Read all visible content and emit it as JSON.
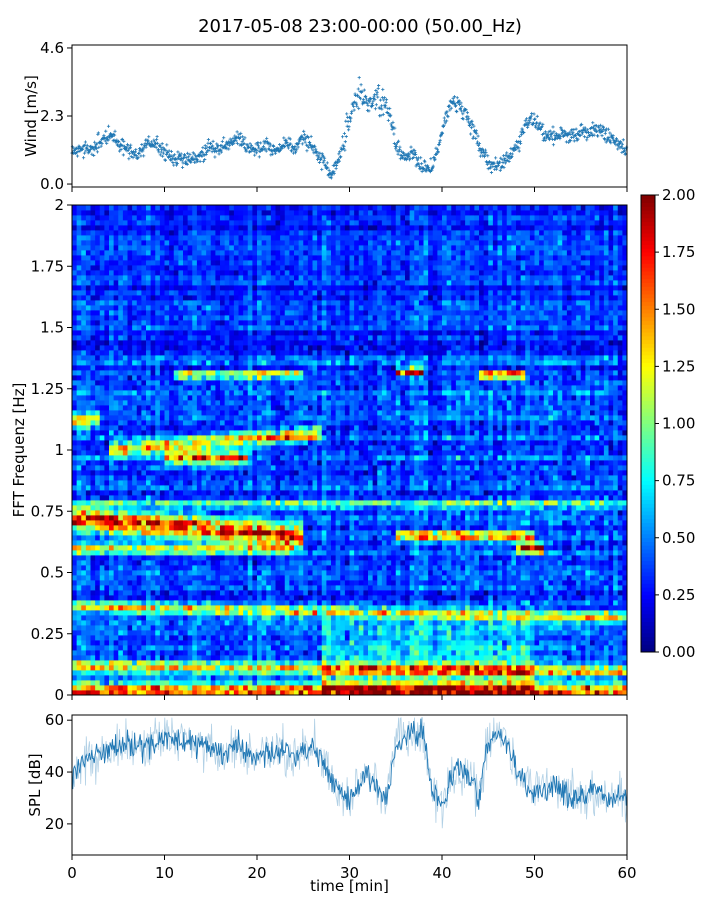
{
  "figure_title": "2017-05-08 23:00-00:00 (50.00_Hz)",
  "chart_data": [
    {
      "name": "wind",
      "type": "scatter",
      "ylabel": "Wind [m/s]",
      "xlim": [
        0,
        60
      ],
      "ylim": [
        -0.1,
        4.7
      ],
      "yticks": [
        0.0,
        2.3,
        4.6
      ],
      "ytick_labels": [
        "0.0",
        "2.3",
        "4.6"
      ],
      "color": "#1f77b4",
      "marker": "+",
      "trend": {
        "x": [
          0,
          1,
          2,
          3,
          4,
          5,
          6,
          7,
          8,
          9,
          10,
          11,
          12,
          13,
          14,
          15,
          16,
          17,
          18,
          19,
          20,
          21,
          22,
          23,
          24,
          25,
          26,
          27,
          28,
          29,
          30,
          31,
          32,
          33,
          34,
          35,
          36,
          37,
          38,
          39,
          40,
          41,
          42,
          43,
          44,
          45,
          46,
          47,
          48,
          49,
          50,
          51,
          52,
          53,
          54,
          55,
          56,
          57,
          58,
          59,
          60
        ],
        "y": [
          1.1,
          1.2,
          1.1,
          1.4,
          1.7,
          1.4,
          1.2,
          1.0,
          1.3,
          1.4,
          1.0,
          0.9,
          0.9,
          0.8,
          1.0,
          1.3,
          1.2,
          1.4,
          1.6,
          1.2,
          1.2,
          1.3,
          1.1,
          1.4,
          1.2,
          1.6,
          1.2,
          0.8,
          0.3,
          0.9,
          2.3,
          3.0,
          2.8,
          2.9,
          2.6,
          1.4,
          0.9,
          1.0,
          0.5,
          0.6,
          1.8,
          2.8,
          2.6,
          2.1,
          1.4,
          0.7,
          0.6,
          0.9,
          1.2,
          2.0,
          2.2,
          1.7,
          1.6,
          1.7,
          1.6,
          1.8,
          1.7,
          1.9,
          1.6,
          1.3,
          1.2
        ]
      }
    },
    {
      "name": "spectrogram",
      "type": "heatmap",
      "ylabel": "FFT Frequenz [Hz]",
      "xlim": [
        0,
        60
      ],
      "ylim": [
        0,
        2
      ],
      "yticks": [
        0,
        0.25,
        0.5,
        0.75,
        1,
        1.25,
        1.5,
        1.75,
        2
      ],
      "ytick_labels": [
        "0",
        "0.25",
        "0.5",
        "0.75",
        "1",
        "1.25",
        "1.5",
        "1.75",
        "2"
      ],
      "colormap": "jet",
      "clim": [
        0.0,
        2.0
      ],
      "colorbar_ticks": [
        "0.00",
        "0.25",
        "0.50",
        "0.75",
        "1.00",
        "1.25",
        "1.50",
        "1.75",
        "2.00"
      ],
      "background_level": 0.4,
      "features": [
        {
          "desc": "band",
          "f": [
            0.72,
            0.65
          ],
          "t": [
            0,
            25
          ],
          "v": 1.6,
          "w": 0.03
        },
        {
          "desc": "band",
          "f": [
            1.0,
            1.07
          ],
          "t": [
            4,
            27
          ],
          "v": 1.2,
          "w": 0.02
        },
        {
          "desc": "band",
          "f": [
            0.97,
            0.97
          ],
          "t": [
            10,
            19
          ],
          "v": 1.4,
          "w": 0.02
        },
        {
          "desc": "band",
          "f": [
            0.6,
            0.6
          ],
          "t": [
            0,
            24
          ],
          "v": 1.0,
          "w": 0.015
        },
        {
          "desc": "band",
          "f": [
            0.36,
            0.32
          ],
          "t": [
            0,
            60
          ],
          "v": 1.1,
          "w": 0.015
        },
        {
          "desc": "band",
          "f": [
            0.12,
            0.1
          ],
          "t": [
            0,
            60
          ],
          "v": 1.2,
          "w": 0.015
        },
        {
          "desc": "band",
          "f": [
            0.02,
            0.02
          ],
          "t": [
            0,
            60
          ],
          "v": 1.5,
          "w": 0.02
        },
        {
          "desc": "band",
          "f": [
            1.31,
            1.31
          ],
          "t": [
            11,
            25
          ],
          "v": 1.1,
          "w": 0.012
        },
        {
          "desc": "band",
          "f": [
            1.32,
            1.32
          ],
          "t": [
            35,
            38
          ],
          "v": 1.6,
          "w": 0.012
        },
        {
          "desc": "band",
          "f": [
            1.31,
            1.31
          ],
          "t": [
            44,
            49
          ],
          "v": 1.6,
          "w": 0.012
        },
        {
          "desc": "band",
          "f": [
            0.65,
            0.65
          ],
          "t": [
            35,
            50
          ],
          "v": 1.3,
          "w": 0.015
        },
        {
          "desc": "band",
          "f": [
            0.6,
            0.6
          ],
          "t": [
            48,
            51
          ],
          "v": 1.6,
          "w": 0.015
        },
        {
          "desc": "band",
          "f": [
            0.78,
            0.78
          ],
          "t": [
            0,
            60
          ],
          "v": 0.8,
          "w": 0.012
        },
        {
          "desc": "band",
          "f": [
            1.12,
            1.12
          ],
          "t": [
            0,
            3
          ],
          "v": 1.1,
          "w": 0.02
        }
      ]
    },
    {
      "name": "spl",
      "type": "line",
      "ylabel": "SPL [dB]",
      "xlabel": "time [min]",
      "xlim": [
        0,
        60
      ],
      "ylim": [
        8,
        62
      ],
      "yticks": [
        20,
        40,
        60
      ],
      "ytick_labels": [
        "20",
        "40",
        "60"
      ],
      "xticks": [
        0,
        10,
        20,
        30,
        40,
        50,
        60
      ],
      "xtick_labels": [
        "0",
        "10",
        "20",
        "30",
        "40",
        "50",
        "60"
      ],
      "color": "#1f77b4",
      "mean": {
        "x": [
          0,
          2,
          4,
          6,
          8,
          10,
          12,
          14,
          16,
          18,
          20,
          22,
          24,
          26,
          27,
          28,
          29,
          30,
          31,
          32,
          33,
          34,
          35,
          36,
          37,
          38,
          39,
          40,
          41,
          42,
          43,
          44,
          45,
          46,
          47,
          48,
          50,
          52,
          54,
          56,
          58,
          60
        ],
        "y": [
          40,
          46,
          48,
          50,
          50,
          53,
          52,
          51,
          47,
          50,
          46,
          48,
          47,
          50,
          46,
          38,
          33,
          30,
          35,
          39,
          35,
          30,
          50,
          55,
          55,
          55,
          32,
          28,
          37,
          42,
          38,
          29,
          53,
          54,
          52,
          40,
          32,
          35,
          30,
          32,
          30,
          30
        ]
      },
      "spread": 7
    }
  ]
}
